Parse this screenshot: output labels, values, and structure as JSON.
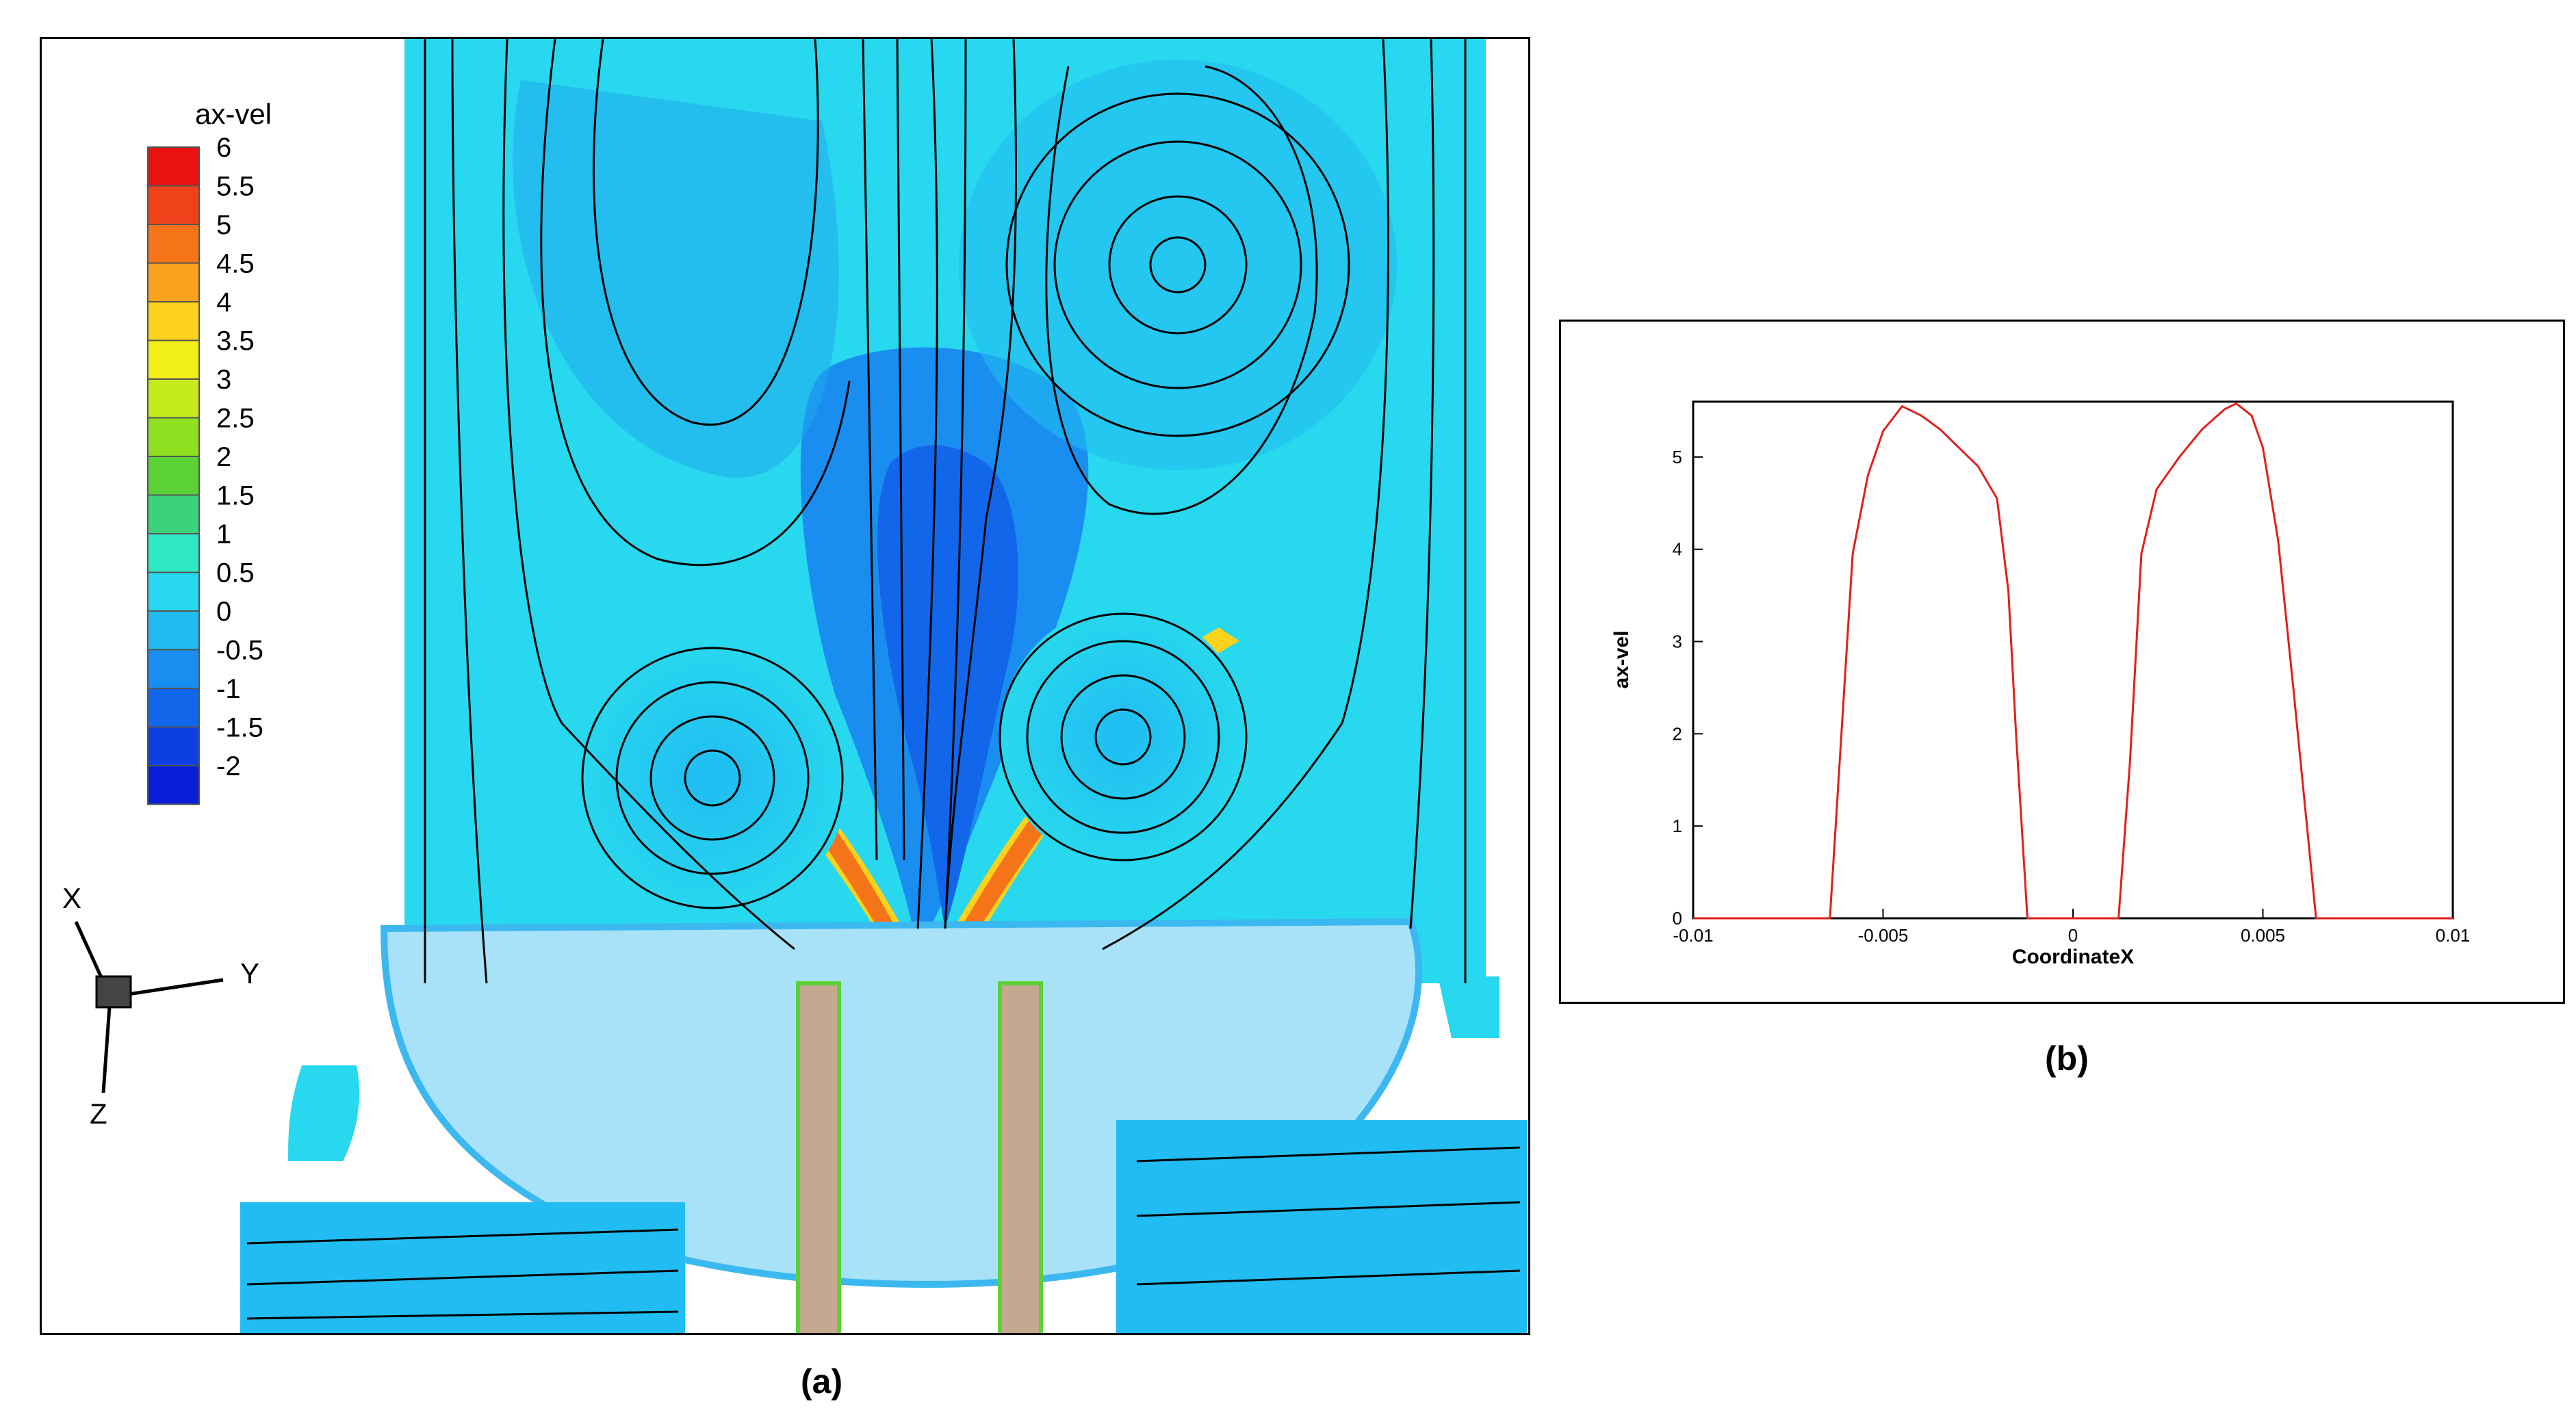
{
  "captions": {
    "a": "(a)",
    "b": "(b)"
  },
  "contour": {
    "legend_title": "ax-vel",
    "levels": [
      "6",
      "5.5",
      "5",
      "4.5",
      "4",
      "3.5",
      "3",
      "2.5",
      "2",
      "1.5",
      "1",
      "0.5",
      "0",
      "-0.5",
      "-1",
      "-1.5",
      "-2"
    ],
    "colors": [
      "#e8120e",
      "#f0421a",
      "#f5741a",
      "#faa21c",
      "#fcd21c",
      "#f2ee18",
      "#c4ec1a",
      "#8ee021",
      "#5ad236",
      "#3cd27c",
      "#2ee8c4",
      "#28d8ee",
      "#20bcf2",
      "#1a8ef0",
      "#1266ea",
      "#0c40e0",
      "#0a1ed8"
    ],
    "axes": {
      "x": "X",
      "y": "Y",
      "z": "Z"
    }
  },
  "chart_data": {
    "type": "line",
    "xlabel": "CoordinateX",
    "ylabel": "ax-vel",
    "xlim": [
      -0.01,
      0.01
    ],
    "ylim": [
      0,
      5.6
    ],
    "xticks": [
      -0.01,
      -0.005,
      0,
      0.005,
      0.01
    ],
    "xtick_labels": [
      "-0.01",
      "-0.005",
      "0",
      "0.005",
      "0.01"
    ],
    "yticks": [
      0,
      1,
      2,
      3,
      4,
      5
    ],
    "ytick_labels": [
      "0",
      "1",
      "2",
      "3",
      "4",
      "5"
    ],
    "grid": false,
    "series": [
      {
        "color": "#e0201c",
        "x": [
          -0.01,
          -0.008,
          -0.0064,
          -0.0058,
          -0.0054,
          -0.005,
          -0.0045,
          -0.004,
          -0.0035,
          -0.003,
          -0.0025,
          -0.002,
          -0.0017,
          -0.0015,
          -0.0012,
          0.0012,
          0.0015,
          0.0018,
          0.0022,
          0.0028,
          0.0034,
          0.004,
          0.0043,
          0.0047,
          0.005,
          0.0054,
          0.0058,
          0.0064,
          0.008,
          0.01
        ],
        "y": [
          0,
          0,
          0,
          3.95,
          4.8,
          5.28,
          5.55,
          5.45,
          5.3,
          5.1,
          4.9,
          4.55,
          3.55,
          2.0,
          0,
          0,
          1.7,
          3.95,
          4.65,
          5.0,
          5.3,
          5.52,
          5.58,
          5.45,
          5.1,
          4.1,
          2.5,
          0,
          0,
          0
        ]
      }
    ]
  }
}
